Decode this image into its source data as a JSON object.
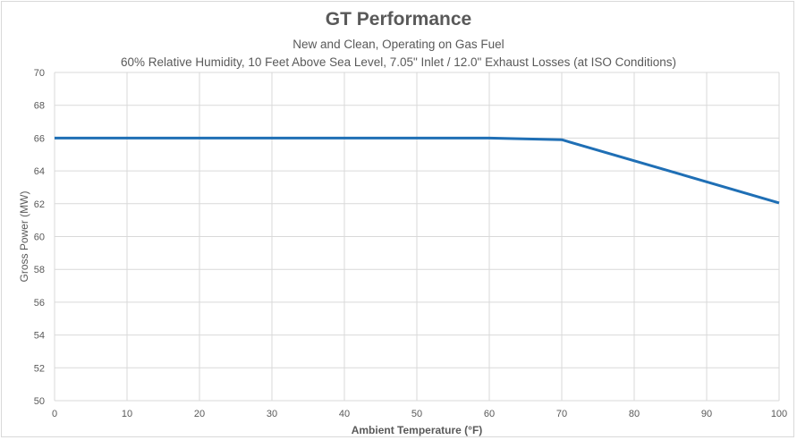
{
  "chart_data": {
    "type": "line",
    "title": "GT Performance",
    "subtitle": "New and Clean, Operating on Gas Fuel",
    "subtitle2": "60% Relative Humidity, 10 Feet Above Sea Level, 7.05\" Inlet / 12.0\" Exhaust Losses (at ISO Conditions)",
    "xlabel": "Ambient Temperature (°F)",
    "ylabel": "Gross Power (MW)",
    "xlim": [
      0,
      100
    ],
    "ylim": [
      50,
      70
    ],
    "xticks": [
      0,
      10,
      20,
      30,
      40,
      50,
      60,
      70,
      80,
      90,
      100
    ],
    "yticks": [
      50,
      52,
      54,
      56,
      58,
      60,
      62,
      64,
      66,
      68,
      70
    ],
    "grid": true,
    "series": [
      {
        "x": [
          0,
          60,
          70,
          100
        ],
        "y": [
          66.0,
          66.0,
          65.9,
          62.05
        ],
        "color": "#1f6fb5"
      }
    ]
  }
}
